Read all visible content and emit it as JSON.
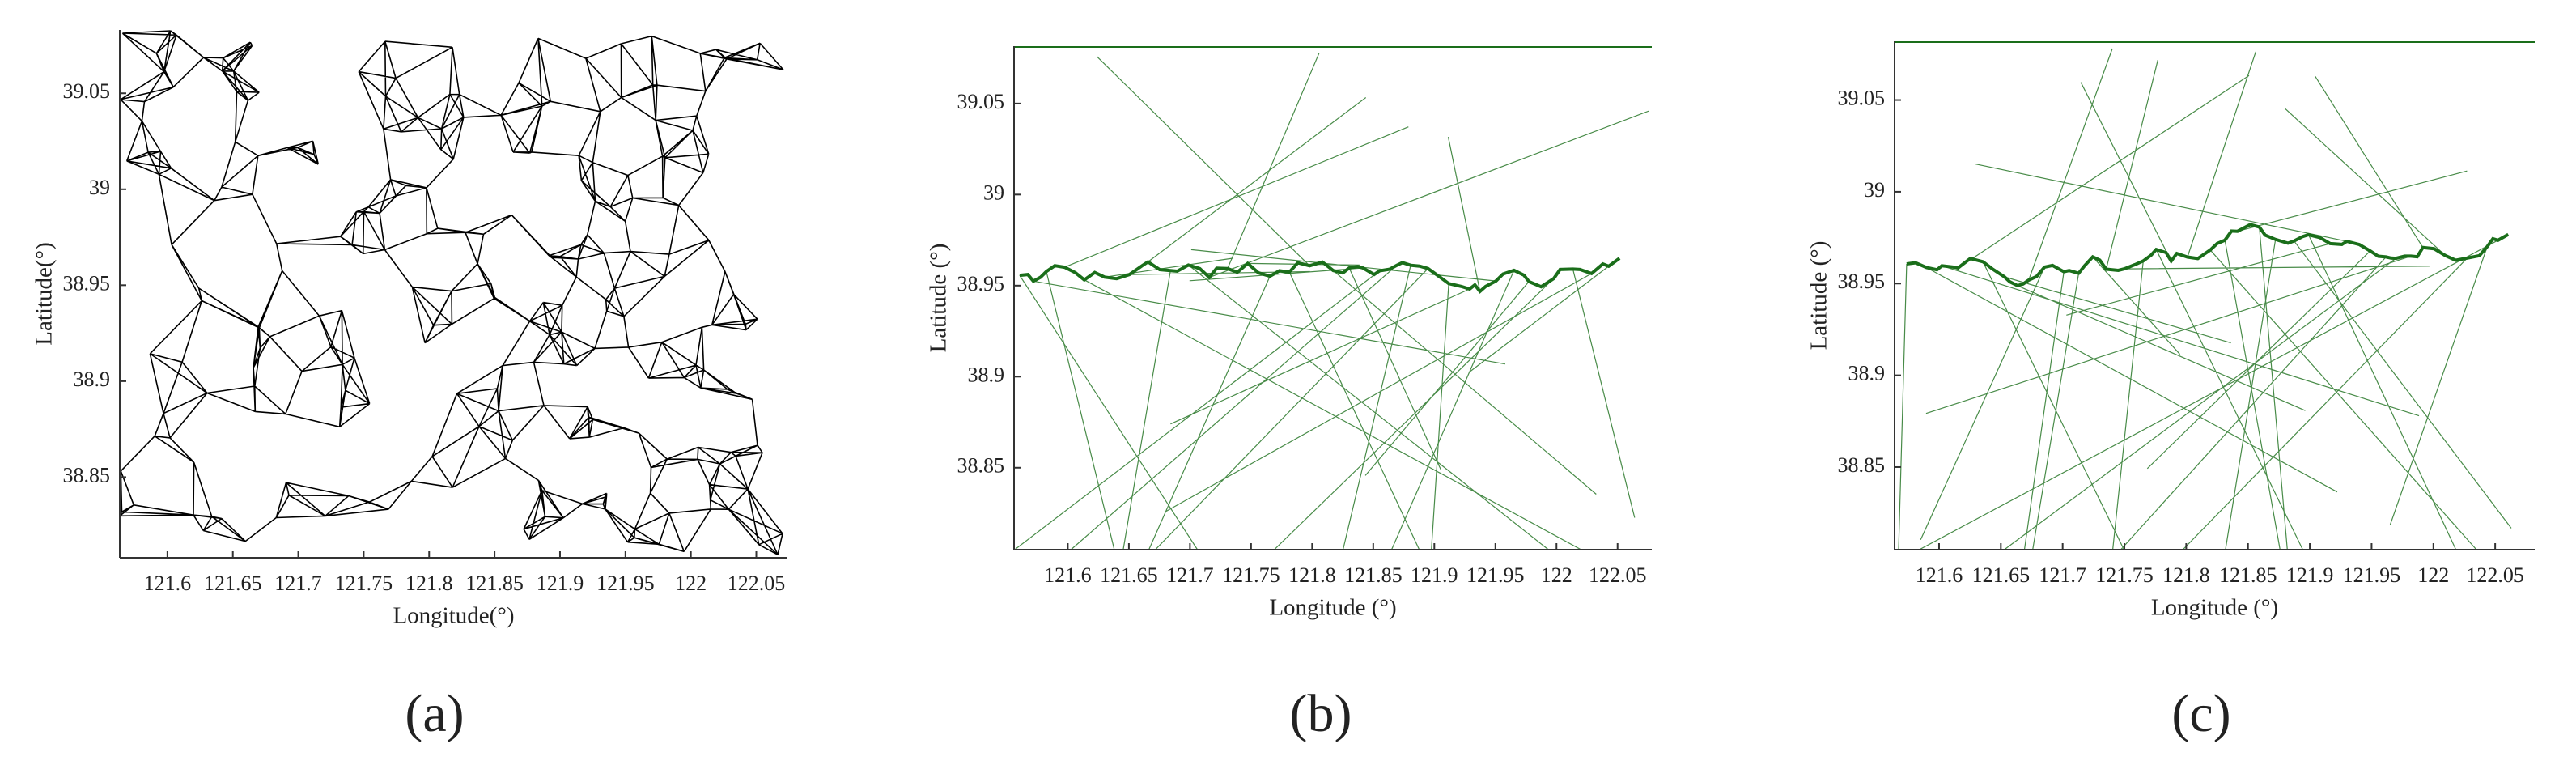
{
  "chart_data": [
    {
      "type": "mesh",
      "color": "#000000",
      "panel_label": "(a)",
      "xlabel": "Longitude(°)",
      "ylabel": "Latitude(°)",
      "xlim": [
        121.5636,
        122.0738
      ],
      "ylim": [
        38.808,
        39.083
      ],
      "xticks": [
        121.6,
        121.65,
        121.7,
        121.75,
        121.8,
        121.85,
        121.9,
        121.95,
        122,
        122.05
      ],
      "yticks": [
        38.85,
        38.9,
        38.95,
        39,
        39.05
      ]
    },
    {
      "type": "voronoi",
      "color": "#1a6e1a",
      "panel_label": "(b)",
      "xlabel": "Longitude (°)",
      "ylabel": "Latitude (°)",
      "xlim": [
        121.556,
        122.078
      ],
      "ylim": [
        38.805,
        39.0815
      ],
      "xticks": [
        121.6,
        121.65,
        121.7,
        121.75,
        121.8,
        121.85,
        121.9,
        121.95,
        122,
        122.05
      ],
      "yticks": [
        38.85,
        38.9,
        38.95,
        39,
        39.05
      ]
    },
    {
      "type": "voronoi",
      "color": "#1a6e1a",
      "panel_label": "(c)",
      "xlabel": "Longitude (°)",
      "ylabel": "Latitude (°)",
      "xlim": [
        121.564,
        122.082
      ],
      "ylim": [
        38.805,
        39.082
      ],
      "xticks": [
        121.6,
        121.65,
        121.7,
        121.75,
        121.8,
        121.85,
        121.9,
        121.95,
        122,
        122.05
      ],
      "yticks": [
        38.85,
        38.9,
        38.95,
        39,
        39.05
      ]
    }
  ]
}
